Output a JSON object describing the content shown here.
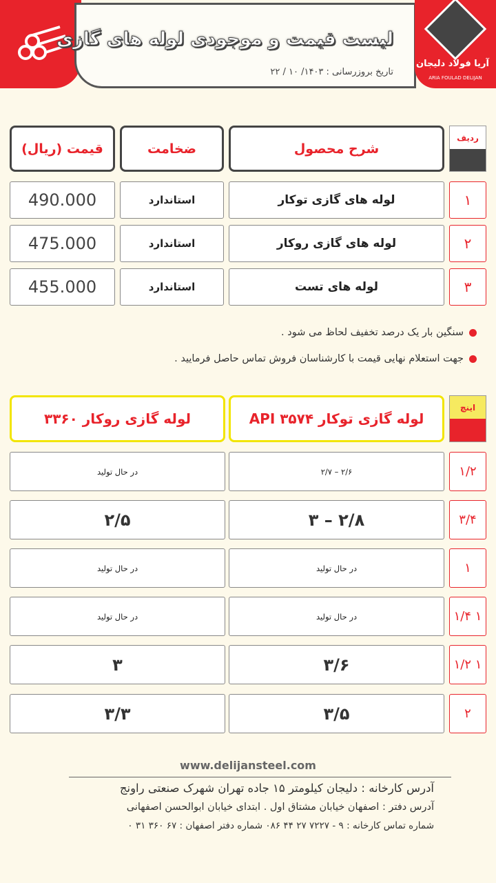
{
  "header": {
    "title": "لیست قیمت و موجودی لوله های گازی",
    "date_label": "تاریخ بروزرسانی :",
    "date": "۱۴۰۳/ ۱۰ / ۲۲",
    "brand_fa": "آریا فولاد دلیجان",
    "brand_en": "ARIA FOULAD DELIJAN"
  },
  "price_table": {
    "headers": {
      "radif": "ردیف",
      "description": "شرح محصول",
      "thickness": "ضخامت",
      "price": "قیمت (ریال)"
    },
    "rows": [
      {
        "index": "۱",
        "description": "لوله های گازی توکار",
        "thickness": "استاندارد",
        "price": "490.000"
      },
      {
        "index": "۲",
        "description": "لوله های گازی روکار",
        "thickness": "استاندارد",
        "price": "475.000"
      },
      {
        "index": "۳",
        "description": "لوله های تست",
        "thickness": "استاندارد",
        "price": "455.000"
      }
    ]
  },
  "notes": [
    "سنگین بار یک درصد تخفیف لحاظ می شود .",
    "جهت استعلام نهایی قیمت با کارشناسان فروش تماس حاصل فرمایید ."
  ],
  "thickness_table": {
    "headers": {
      "inch": "اینچ",
      "tokar": "لوله گازی توکار API ۳۵۷۴",
      "rokar": "لوله گازی روکار ۳۳۶۰"
    },
    "rows": [
      {
        "inch": "۱/۲",
        "tokar": "۲/۶ – ۲/۷",
        "rokar": "در حال تولید"
      },
      {
        "inch": "۳/۴",
        "tokar": "۲/۸ – ۳",
        "rokar": "۲/۵"
      },
      {
        "inch": "۱",
        "tokar": "در حال تولید",
        "rokar": "در حال تولید"
      },
      {
        "inch": "۱ ۱/۴",
        "tokar": "در حال تولید",
        "rokar": "در حال تولید"
      },
      {
        "inch": "۱ ۱/۲",
        "tokar": "۳/۶",
        "rokar": "۳"
      },
      {
        "inch": "۲",
        "tokar": "۳/۵",
        "rokar": "۳/۳"
      }
    ]
  },
  "footer": {
    "website": "www.delijansteel.com",
    "factory_address": "آدرس کارخانه : دلیجان کیلومتر ۱۵ جاده تهران شهرک صنعتی راونج",
    "office_address": "آدرس دفتر : اصفهان خیابان مشتاق اول . ابتدای خیابان ابوالحسن اصفهانی",
    "phones": "شماره تماس کارخانه : ۹ - ۷۲۲۷ ۲۷ ۴۴ ۰۸۶ شماره دفتر اصفهان : ۶۷ ۳۶۰ ۳۱ ۰"
  },
  "colors": {
    "accent": "#e8232b",
    "dark": "#444444",
    "highlight": "#f2e500",
    "background": "#fdf9ea"
  }
}
